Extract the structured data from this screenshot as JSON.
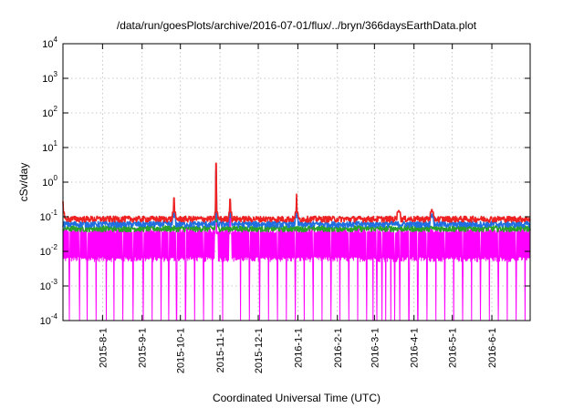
{
  "chart_data": {
    "type": "line",
    "title": "/data/run/goesPlots/archive/2016-07-01/flux/../bryn/366daysEarthData.plot",
    "xlabel": "Coordinated Universal Time (UTC)",
    "ylabel": "cSv/day",
    "yscale": "log",
    "ylim": [
      0.0001,
      10000
    ],
    "xlim": [
      "2015-07-01",
      "2016-07-01"
    ],
    "grid": true,
    "legend": "none",
    "y_ticks": [
      {
        "base": "10",
        "exp": "-4",
        "value": 0.0001
      },
      {
        "base": "10",
        "exp": "-3",
        "value": 0.001
      },
      {
        "base": "10",
        "exp": "-2",
        "value": 0.01
      },
      {
        "base": "10",
        "exp": "-1",
        "value": 0.1
      },
      {
        "base": "10",
        "exp": "0",
        "value": 1
      },
      {
        "base": "10",
        "exp": "1",
        "value": 10
      },
      {
        "base": "10",
        "exp": "2",
        "value": 100
      },
      {
        "base": "10",
        "exp": "3",
        "value": 1000
      },
      {
        "base": "10",
        "exp": "4",
        "value": 10000
      }
    ],
    "x_ticks": [
      "2015-8-1",
      "2015-9-1",
      "2015-10-1",
      "2015-11-1",
      "2015-12-1",
      "2016-1-1",
      "2016-2-1",
      "2016-3-1",
      "2016-4-1",
      "2016-5-1",
      "2016-6-1"
    ],
    "series": [
      {
        "color": "#ff00ff",
        "baseline": 0.02,
        "band_low": 0.005,
        "band_high": 0.045,
        "dropout_dates": [
          "2015-07-06",
          "2015-07-14",
          "2015-07-20",
          "2015-07-27",
          "2015-08-04",
          "2015-08-10",
          "2015-08-17",
          "2015-08-25",
          "2015-09-02",
          "2015-09-09",
          "2015-09-16",
          "2015-09-22",
          "2015-09-28",
          "2015-10-05",
          "2015-10-12",
          "2015-10-19",
          "2015-10-26",
          "2015-11-03",
          "2015-11-10",
          "2015-11-17",
          "2015-11-24",
          "2015-12-02",
          "2015-12-09",
          "2015-12-16",
          "2015-12-23",
          "2015-12-30",
          "2016-01-06",
          "2016-01-13",
          "2016-01-20",
          "2016-01-27",
          "2016-02-03",
          "2016-02-10",
          "2016-02-17",
          "2016-02-24",
          "2016-02-29",
          "2016-03-03",
          "2016-03-07",
          "2016-03-10",
          "2016-03-14",
          "2016-03-17",
          "2016-03-21",
          "2016-03-28",
          "2016-04-04",
          "2016-04-11",
          "2016-04-18",
          "2016-04-25",
          "2016-05-02",
          "2016-05-09",
          "2016-05-16",
          "2016-05-23",
          "2016-05-30",
          "2016-06-06",
          "2016-06-13",
          "2016-06-20",
          "2016-06-27"
        ],
        "spikes": [
          {
            "date": "2015-10-29",
            "value": 1.5
          },
          {
            "date": "2015-11-09",
            "value": 0.2
          }
        ]
      },
      {
        "color": "#2ca02c",
        "baseline": 0.045,
        "spikes": [
          {
            "date": "2015-10-29",
            "value": 1.5
          }
        ]
      },
      {
        "color": "#1f6fe0",
        "baseline": 0.06,
        "spikes": [
          {
            "date": "2015-09-26",
            "value": 0.15
          },
          {
            "date": "2015-10-29",
            "value": 2.2
          },
          {
            "date": "2015-11-09",
            "value": 0.25
          },
          {
            "date": "2015-12-31",
            "value": 0.35
          },
          {
            "date": "2016-04-15",
            "value": 0.12
          }
        ]
      },
      {
        "color": "#ee2222",
        "baseline": 0.085,
        "spikes": [
          {
            "date": "2015-07-01",
            "value": 0.28
          },
          {
            "date": "2015-09-26",
            "value": 0.35
          },
          {
            "date": "2015-10-29",
            "value": 3.5
          },
          {
            "date": "2015-11-09",
            "value": 0.32
          },
          {
            "date": "2015-12-31",
            "value": 0.45
          },
          {
            "date": "2016-03-20",
            "value": 0.15
          },
          {
            "date": "2016-04-15",
            "value": 0.16
          }
        ]
      }
    ]
  }
}
